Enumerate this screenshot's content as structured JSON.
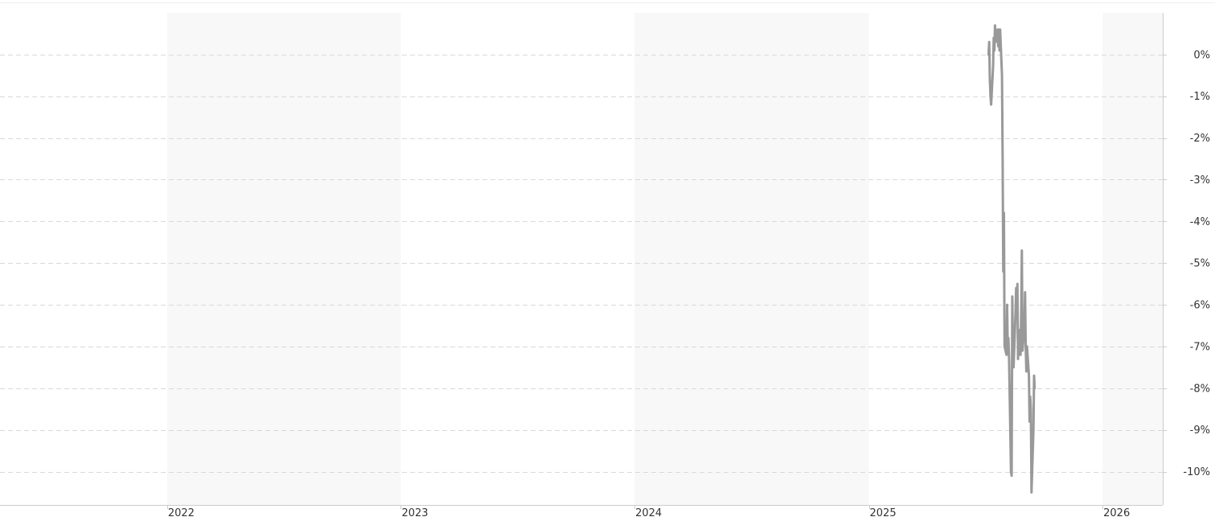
{
  "chart_data": {
    "type": "line",
    "title": "",
    "xlabel": "",
    "ylabel": "",
    "x_ticks": [
      "2022",
      "2023",
      "2024",
      "2025",
      "2026"
    ],
    "y_ticks": [
      "0%",
      "-1%",
      "-2%",
      "-3%",
      "-4%",
      "-5%",
      "-6%",
      "-7%",
      "-8%",
      "-9%",
      "-10%"
    ],
    "y_tick_values": [
      0,
      -1,
      -2,
      -3,
      -4,
      -5,
      -6,
      -7,
      -8,
      -9,
      -10
    ],
    "ylim": [
      -10.8,
      1.0
    ],
    "xlim": [
      "2021-04-15",
      "2026-04-05"
    ],
    "grid": true,
    "alternate_year_bands": true,
    "y_axis_side": "right",
    "line_color": "#999999",
    "band_color": "#f8f8f8",
    "grid_color": "#d9d9d9",
    "series": [
      {
        "values": [
          [
            "2025-07-07",
            0.0
          ],
          [
            "2025-07-08",
            0.3
          ],
          [
            "2025-07-09",
            -0.6
          ],
          [
            "2025-07-10",
            -1.0
          ],
          [
            "2025-07-11",
            -1.2
          ],
          [
            "2025-07-14",
            -0.3
          ],
          [
            "2025-07-15",
            0.4
          ],
          [
            "2025-07-16",
            0.1
          ],
          [
            "2025-07-17",
            0.7
          ],
          [
            "2025-07-18",
            0.3
          ],
          [
            "2025-07-21",
            0.6
          ],
          [
            "2025-07-22",
            0.2
          ],
          [
            "2025-07-23",
            0.6
          ],
          [
            "2025-07-24",
            0.1
          ],
          [
            "2025-07-25",
            0.6
          ],
          [
            "2025-07-28",
            -0.5
          ],
          [
            "2025-07-29",
            -2.5
          ],
          [
            "2025-07-30",
            -5.2
          ],
          [
            "2025-07-31",
            -3.8
          ],
          [
            "2025-08-01",
            -7.0
          ],
          [
            "2025-08-04",
            -7.2
          ],
          [
            "2025-08-05",
            -6.0
          ],
          [
            "2025-08-06",
            -7.1
          ],
          [
            "2025-08-07",
            -6.8
          ],
          [
            "2025-08-08",
            -7.3
          ],
          [
            "2025-08-11",
            -10.0
          ],
          [
            "2025-08-12",
            -10.1
          ],
          [
            "2025-08-13",
            -5.8
          ],
          [
            "2025-08-14",
            -7.1
          ],
          [
            "2025-08-15",
            -7.5
          ],
          [
            "2025-08-18",
            -6.2
          ],
          [
            "2025-08-19",
            -5.6
          ],
          [
            "2025-08-20",
            -6.1
          ],
          [
            "2025-08-21",
            -5.5
          ],
          [
            "2025-08-22",
            -7.3
          ],
          [
            "2025-08-25",
            -6.6
          ],
          [
            "2025-08-26",
            -7.2
          ],
          [
            "2025-08-27",
            -6.1
          ],
          [
            "2025-08-28",
            -4.7
          ],
          [
            "2025-08-29",
            -7.1
          ],
          [
            "2025-09-01",
            -6.5
          ],
          [
            "2025-09-02",
            -5.7
          ],
          [
            "2025-09-03",
            -7.0
          ],
          [
            "2025-09-04",
            -7.6
          ],
          [
            "2025-09-05",
            -7.0
          ],
          [
            "2025-09-08",
            -7.7
          ],
          [
            "2025-09-09",
            -8.8
          ],
          [
            "2025-09-10",
            -8.2
          ],
          [
            "2025-09-11",
            -8.5
          ],
          [
            "2025-09-12",
            -10.5
          ],
          [
            "2025-09-15",
            -9.0
          ],
          [
            "2025-09-16",
            -7.7
          ],
          [
            "2025-09-17",
            -8.0
          ]
        ]
      }
    ]
  }
}
